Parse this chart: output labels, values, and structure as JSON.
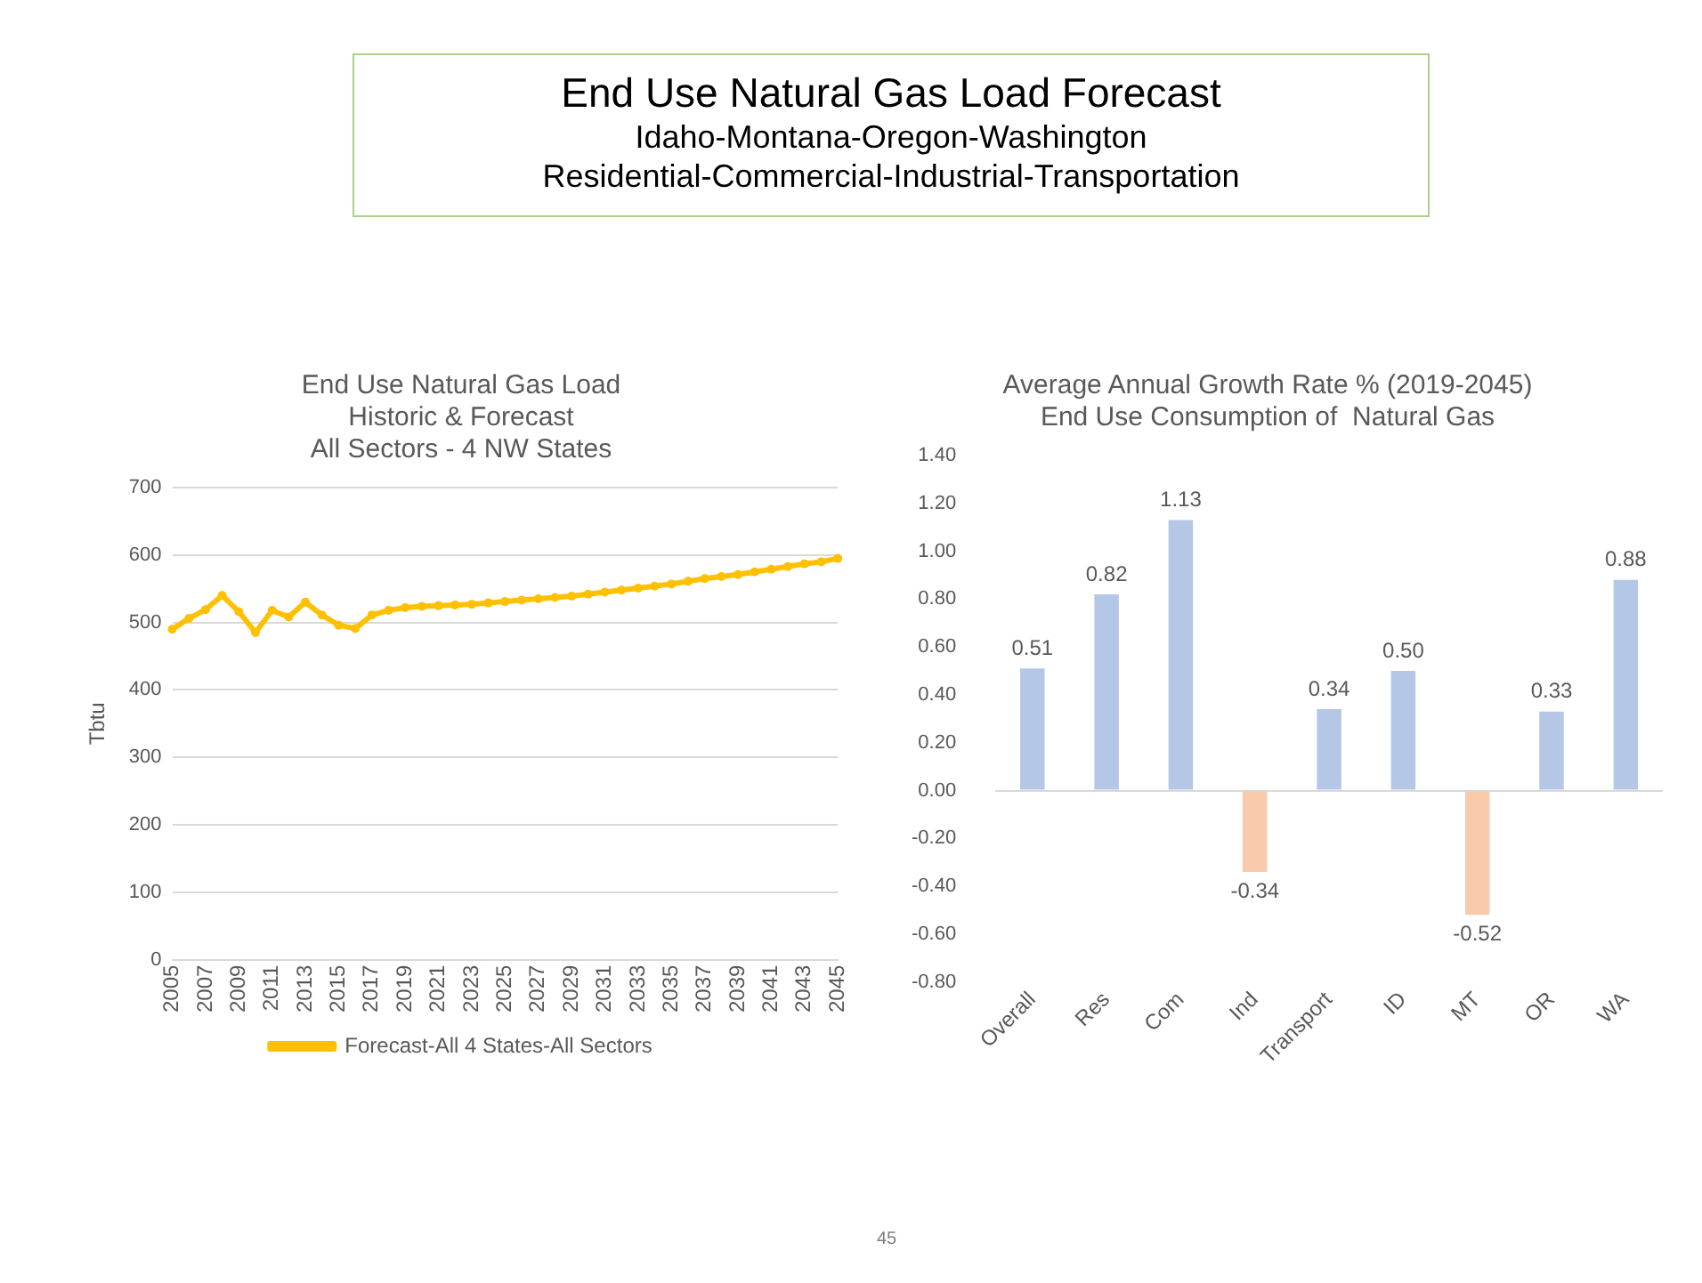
{
  "chart_data": [
    {
      "type": "other",
      "title": "End Use Natural Gas Load Forecast",
      "annotations": [
        "Idaho-Montana-Oregon-Washington",
        "Residential-Commercial-Industrial-Transportation",
        "45"
      ]
    },
    {
      "type": "line",
      "title": "End Use Natural Gas Load\nHistoric & Forecast\nAll Sectors - 4 NW States",
      "ylabel": "Tbtu",
      "categories": [
        "2005",
        null,
        "2007",
        null,
        "2009",
        null,
        "2011",
        null,
        "2013",
        null,
        "2015",
        null,
        "2017",
        null,
        "2019",
        null,
        "2021",
        null,
        "2023",
        null,
        "2025",
        null,
        "2027",
        null,
        "2029",
        null,
        "2031",
        null,
        "2033",
        null,
        "2035",
        null,
        "2037",
        null,
        "2039",
        null,
        "2041",
        null,
        "2043",
        null,
        "2045"
      ],
      "series": [
        {
          "name": "Forecast-All 4 States-All Sectors",
          "color": "#ffc000",
          "values": [
            490,
            506,
            519,
            540,
            516,
            485,
            518,
            508,
            530,
            511,
            496,
            491,
            511,
            518,
            522,
            524,
            525,
            526,
            527,
            529,
            531,
            533,
            535,
            537,
            539,
            542,
            545,
            548,
            551,
            554,
            557,
            561,
            565,
            568,
            571,
            575,
            579,
            583,
            587,
            590,
            595
          ]
        }
      ],
      "ylim": [
        0,
        700
      ],
      "yticks": [
        0,
        100,
        200,
        300,
        400,
        500,
        600,
        700
      ],
      "grid": "y",
      "legend": "bottom",
      "marker": "circle"
    },
    {
      "type": "bar",
      "title": "Average Annual Growth Rate % (2019-2045)\nEnd Use Consumption of  Natural Gas",
      "categories": [
        "Overall",
        "Res",
        "Com",
        "Ind",
        "Transport",
        "ID",
        "MT",
        "OR",
        "WA"
      ],
      "values": [
        0.51,
        0.82,
        1.13,
        -0.34,
        0.34,
        0.5,
        -0.52,
        0.33,
        0.88
      ],
      "colors": [
        "#b4c7e7",
        "#b4c7e7",
        "#b4c7e7",
        "#f8cbad",
        "#b4c7e7",
        "#b4c7e7",
        "#f8cbad",
        "#b4c7e7",
        "#b4c7e7"
      ],
      "value_labels": [
        "0.51",
        "0.82",
        "1.13",
        "-0.34",
        "0.34",
        "0.50",
        "-0.52",
        "0.33",
        "0.88"
      ],
      "ylim": [
        -0.8,
        1.4
      ],
      "yticks": [
        {
          "value": -0.8,
          "label": "-0.80"
        },
        {
          "value": -0.6,
          "label": "-0.60"
        },
        {
          "value": -0.4,
          "label": "-0.40"
        },
        {
          "value": -0.2,
          "label": "-0.20"
        },
        {
          "value": 0,
          "label": "0.00"
        },
        {
          "value": 0.2,
          "label": "0.20"
        },
        {
          "value": 0.4,
          "label": "0.40"
        },
        {
          "value": 0.6,
          "label": "0.60"
        },
        {
          "value": 0.8,
          "label": "0.80"
        },
        {
          "value": 1.0,
          "label": "1.00"
        },
        {
          "value": 1.2,
          "label": "1.20"
        },
        {
          "value": 1.4,
          "label": "1.40"
        }
      ]
    }
  ]
}
